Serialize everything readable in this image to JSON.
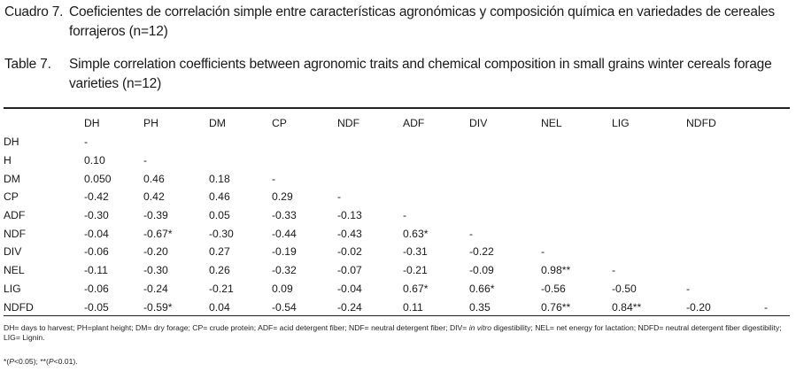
{
  "caption_es": {
    "number": "Cuadro 7.",
    "text": "Coeficientes de correlación simple entre características agronómicas y composición química en variedades de cereales forrajeros (n=12)"
  },
  "caption_en": {
    "number": "Table 7.",
    "text": "Simple correlation coefficients between agronomic traits and chemical composition in small grains winter cereals forage varieties (n=12)"
  },
  "table": {
    "columns": [
      "",
      "DH",
      "PH",
      "DM",
      "CP",
      "NDF",
      "ADF",
      "DIV",
      "NEL",
      "LIG",
      "NDFD",
      ""
    ],
    "rows": [
      [
        "DH",
        "-",
        "",
        "",
        "",
        "",
        "",
        "",
        "",
        "",
        "",
        ""
      ],
      [
        "H",
        "0.10",
        "-",
        "",
        "",
        "",
        "",
        "",
        "",
        "",
        "",
        ""
      ],
      [
        "DM",
        "0.050",
        "0.46",
        "0.18",
        "-",
        "",
        "",
        "",
        "",
        "",
        "",
        ""
      ],
      [
        "CP",
        "-0.42",
        "0.42",
        "0.46",
        "0.29",
        "-",
        "",
        "",
        "",
        "",
        "",
        ""
      ],
      [
        "ADF",
        "-0.30",
        "-0.39",
        "0.05",
        "-0.33",
        "-0.13",
        "-",
        "",
        "",
        "",
        "",
        ""
      ],
      [
        "NDF",
        "-0.04",
        "-0.67*",
        "-0.30",
        "-0.44",
        "-0.43",
        "0.63*",
        "-",
        "",
        "",
        "",
        ""
      ],
      [
        "DIV",
        "-0.06",
        "-0.20",
        "0.27",
        "-0.19",
        "-0.02",
        "-0.31",
        "-0.22",
        "-",
        "",
        "",
        ""
      ],
      [
        "NEL",
        "-0.11",
        "-0.30",
        "0.26",
        "-0.32",
        "-0.07",
        "-0.21",
        "-0.09",
        "0.98**",
        "-",
        "",
        ""
      ],
      [
        "LIG",
        "-0.06",
        "-0.24",
        "-0.21",
        "0.09",
        "-0.04",
        "0.67*",
        "0.66*",
        "-0.56",
        "-0.50",
        "-",
        ""
      ],
      [
        "NDFD",
        "-0.05",
        "-0.59*",
        "0.04",
        "-0.54",
        "-0.24",
        "0.11",
        "0.35",
        "0.76**",
        "0.84**",
        "-0.20",
        "-"
      ]
    ]
  },
  "footnote_abbrev": {
    "before_italic": "DH= days to harvest; PH=plant height;  DM= dry forage; CP= crude protein; ADF= acid detergent fiber; NDF= neutral detergent fiber; DIV=  ",
    "italic": "in vitro",
    "after_italic": " digestibility; NEL= net energy for lactation; NDFD= neutral detergent fiber digestibility; LIG= Lignin."
  },
  "footnote_sig": {
    "p1_prefix": "*(",
    "p1_italic": "P",
    "p1_suffix": "<0.05);  **(",
    "p2_italic": "P",
    "p2_suffix": "<0.01)."
  }
}
